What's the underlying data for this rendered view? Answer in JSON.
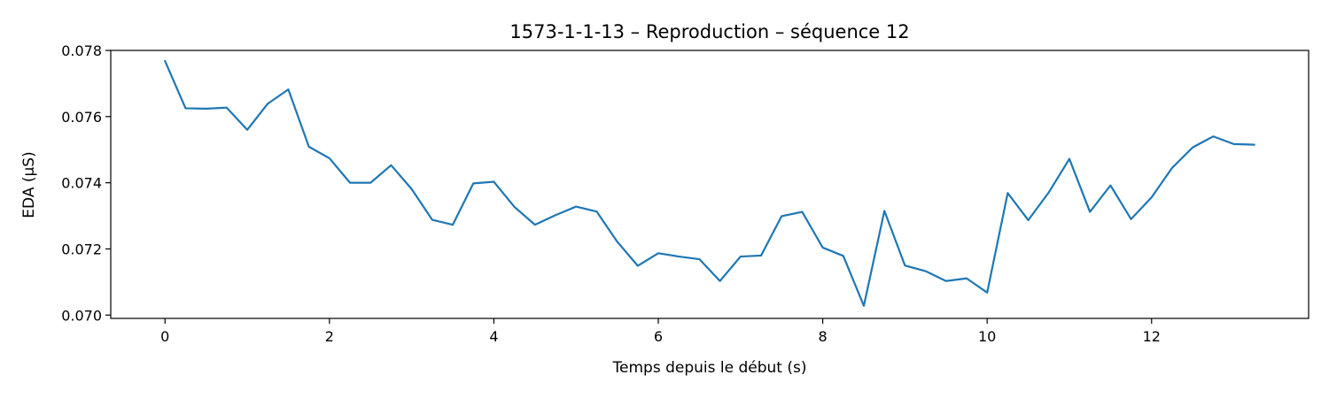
{
  "chart_data": {
    "type": "line",
    "title": "1573-1-1-13 – Reproduction – séquence 12",
    "xlabel": "Temps depuis le début (s)",
    "ylabel": "EDA (µS)",
    "xlim": [
      -0.66,
      13.91
    ],
    "ylim": [
      0.0699,
      0.078
    ],
    "xticks": [
      0,
      2,
      4,
      6,
      8,
      10,
      12
    ],
    "xtick_labels": [
      "0",
      "2",
      "4",
      "6",
      "8",
      "10",
      "12"
    ],
    "yticks": [
      0.07,
      0.072,
      0.074,
      0.076,
      0.078
    ],
    "ytick_labels": [
      "0.070",
      "0.072",
      "0.074",
      "0.076",
      "0.078"
    ],
    "grid": false,
    "series": [
      {
        "color": "#1f77b4",
        "x": [
          0,
          0.25,
          0.5,
          0.75,
          1.0,
          1.25,
          1.5,
          1.75,
          2.0,
          2.25,
          2.5,
          2.75,
          3.0,
          3.25,
          3.5,
          3.75,
          4.0,
          4.25,
          4.5,
          4.75,
          5.0,
          5.25,
          5.5,
          5.75,
          6.0,
          6.25,
          6.5,
          6.75,
          7.0,
          7.25,
          7.5,
          7.75,
          8.0,
          8.25,
          8.5,
          8.75,
          9.0,
          9.25,
          9.5,
          9.75,
          10.0,
          10.25,
          10.5,
          10.75,
          11.0,
          11.25,
          11.5,
          11.75,
          12.0,
          12.25,
          12.5,
          12.75,
          13.0,
          13.25
        ],
        "y": [
          0.07768,
          0.07625,
          0.07624,
          0.07627,
          0.0756,
          0.07639,
          0.07682,
          0.07509,
          0.07474,
          0.074,
          0.074,
          0.07453,
          0.07381,
          0.07288,
          0.07273,
          0.07398,
          0.07403,
          0.07327,
          0.07273,
          0.07302,
          0.07328,
          0.07313,
          0.07222,
          0.07149,
          0.07187,
          0.07177,
          0.07169,
          0.07103,
          0.07177,
          0.0718,
          0.07299,
          0.07312,
          0.07204,
          0.07179,
          0.07028,
          0.07315,
          0.0715,
          0.07133,
          0.07103,
          0.07111,
          0.07068,
          0.07369,
          0.07287,
          0.07371,
          0.07472,
          0.07312,
          0.07392,
          0.0729,
          0.07356,
          0.07445,
          0.07507,
          0.0754,
          0.07517,
          0.07515
        ]
      }
    ]
  }
}
